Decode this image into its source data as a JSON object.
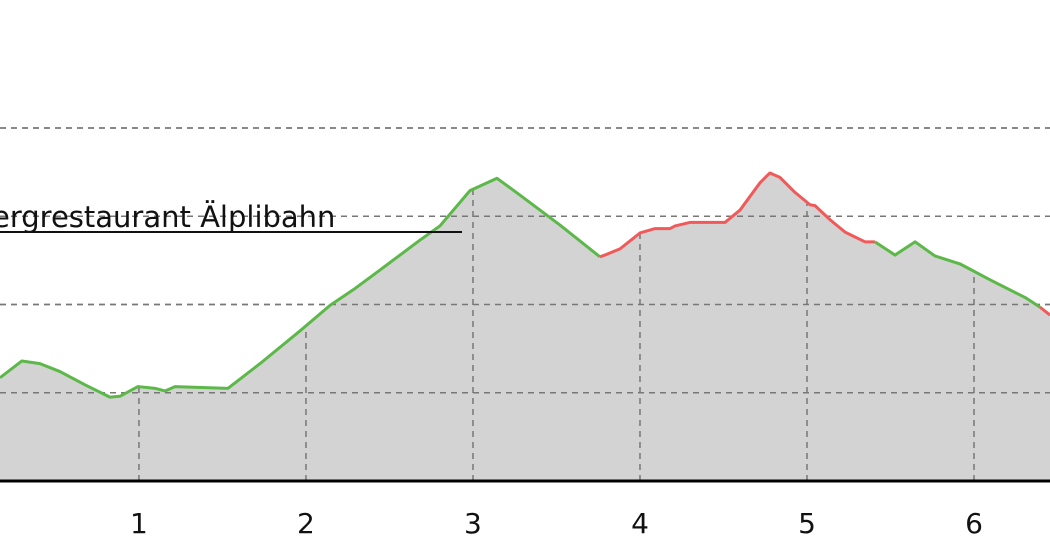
{
  "chart_data": {
    "type": "area",
    "title": "",
    "xlabel": "",
    "ylabel": "",
    "xlim": [
      0.168,
      6.455
    ],
    "ylim": [
      0,
      5.45
    ],
    "grid": true,
    "x_ticks": [
      1,
      2,
      3,
      4,
      5,
      6
    ],
    "x_tick_labels": [
      "1",
      "2",
      "3",
      "4",
      "5",
      "6"
    ],
    "y_grid_levels": [
      1,
      2,
      3,
      4
    ],
    "annotation": "ergrestaurant Älplibahn",
    "fill_color": "#d3d3d3",
    "colors": {
      "ascent": "#5cb848",
      "descent": "#f05a5a",
      "baseline": "#000000",
      "grid": "#777777"
    },
    "x": [
      0.168,
      0.299,
      0.407,
      0.527,
      0.677,
      0.826,
      0.886,
      0.994,
      1.096,
      1.156,
      1.216,
      1.533,
      1.725,
      1.964,
      2.144,
      2.293,
      2.443,
      2.683,
      2.802,
      2.982,
      3.144,
      3.281,
      3.521,
      3.76,
      3.79,
      3.88,
      4.0,
      4.09,
      4.18,
      4.21,
      4.299,
      4.509,
      4.599,
      4.719,
      4.778,
      4.838,
      4.928,
      5.018,
      5.048,
      5.138,
      5.228,
      5.347,
      5.407,
      5.527,
      5.647,
      5.766,
      5.916,
      6.096,
      6.305,
      6.395,
      6.455
    ],
    "y": [
      1.17,
      1.36,
      1.33,
      1.24,
      1.09,
      0.95,
      0.96,
      1.07,
      1.05,
      1.02,
      1.07,
      1.05,
      1.33,
      1.7,
      1.99,
      2.18,
      2.39,
      2.73,
      2.89,
      3.29,
      3.43,
      3.24,
      2.9,
      2.54,
      2.56,
      2.63,
      2.81,
      2.86,
      2.86,
      2.89,
      2.93,
      2.93,
      3.07,
      3.38,
      3.49,
      3.44,
      3.27,
      3.13,
      3.12,
      2.96,
      2.82,
      2.71,
      2.71,
      2.56,
      2.71,
      2.55,
      2.46,
      2.28,
      2.08,
      1.97,
      1.88
    ],
    "segments": [
      {
        "from": 0.168,
        "to": 3.76,
        "color": "ascent"
      },
      {
        "from": 3.76,
        "to": 5.407,
        "color": "descent"
      },
      {
        "from": 5.407,
        "to": 6.395,
        "color": "ascent"
      },
      {
        "from": 6.395,
        "to": 6.455,
        "color": "descent"
      }
    ]
  }
}
